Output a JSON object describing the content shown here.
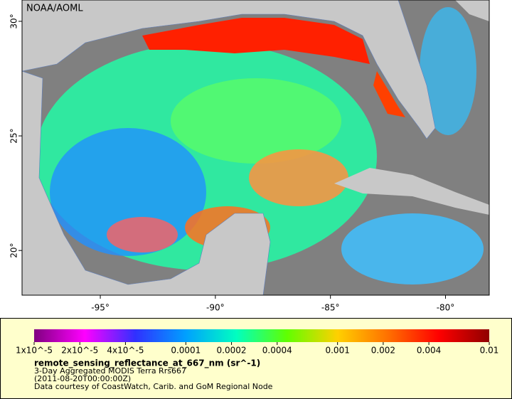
{
  "map": {
    "credit": "NOAA/AOML",
    "xlim": [
      -98.4,
      -78.1
    ],
    "ylim": [
      18.05,
      30.93
    ],
    "xticks": [
      {
        "value": -95,
        "label": "-95°"
      },
      {
        "value": -90,
        "label": "-90°"
      },
      {
        "value": -85,
        "label": "-85°"
      },
      {
        "value": -80,
        "label": "-80°"
      }
    ],
    "yticks": [
      {
        "value": 30,
        "label": "30°"
      },
      {
        "value": 25,
        "label": "25°"
      },
      {
        "value": 20,
        "label": "20°"
      }
    ]
  },
  "colorbar": {
    "log": true,
    "lim": [
      1e-05,
      0.01
    ],
    "colors": [
      "#800080",
      "#ff00ff",
      "#3030ff",
      "#00a0ff",
      "#00ffc0",
      "#60ff00",
      "#ffd000",
      "#ff7000",
      "#ff0000",
      "#900000"
    ],
    "ticks": [
      {
        "value": 1e-05,
        "label": "1x10^-5"
      },
      {
        "value": 2e-05,
        "label": "2x10^-5"
      },
      {
        "value": 4e-05,
        "label": "4x10^-5"
      },
      {
        "value": 0.0001,
        "label": "0.0001"
      },
      {
        "value": 0.0002,
        "label": "0.0002"
      },
      {
        "value": 0.0004,
        "label": "0.0004"
      },
      {
        "value": 0.001,
        "label": "0.001"
      },
      {
        "value": 0.002,
        "label": "0.002"
      },
      {
        "value": 0.004,
        "label": "0.004"
      },
      {
        "value": 0.01,
        "label": "0.01"
      }
    ],
    "title": "remote_sensing_reflectance_at_667_nm (sr^-1)",
    "lines": [
      "3-Day Aggregated MODIS Terra Rrs667",
      "(2011-08-20T00:00:00Z)",
      "Data courtesy of CoastWatch, Carib. and GoM Regional Node"
    ]
  }
}
